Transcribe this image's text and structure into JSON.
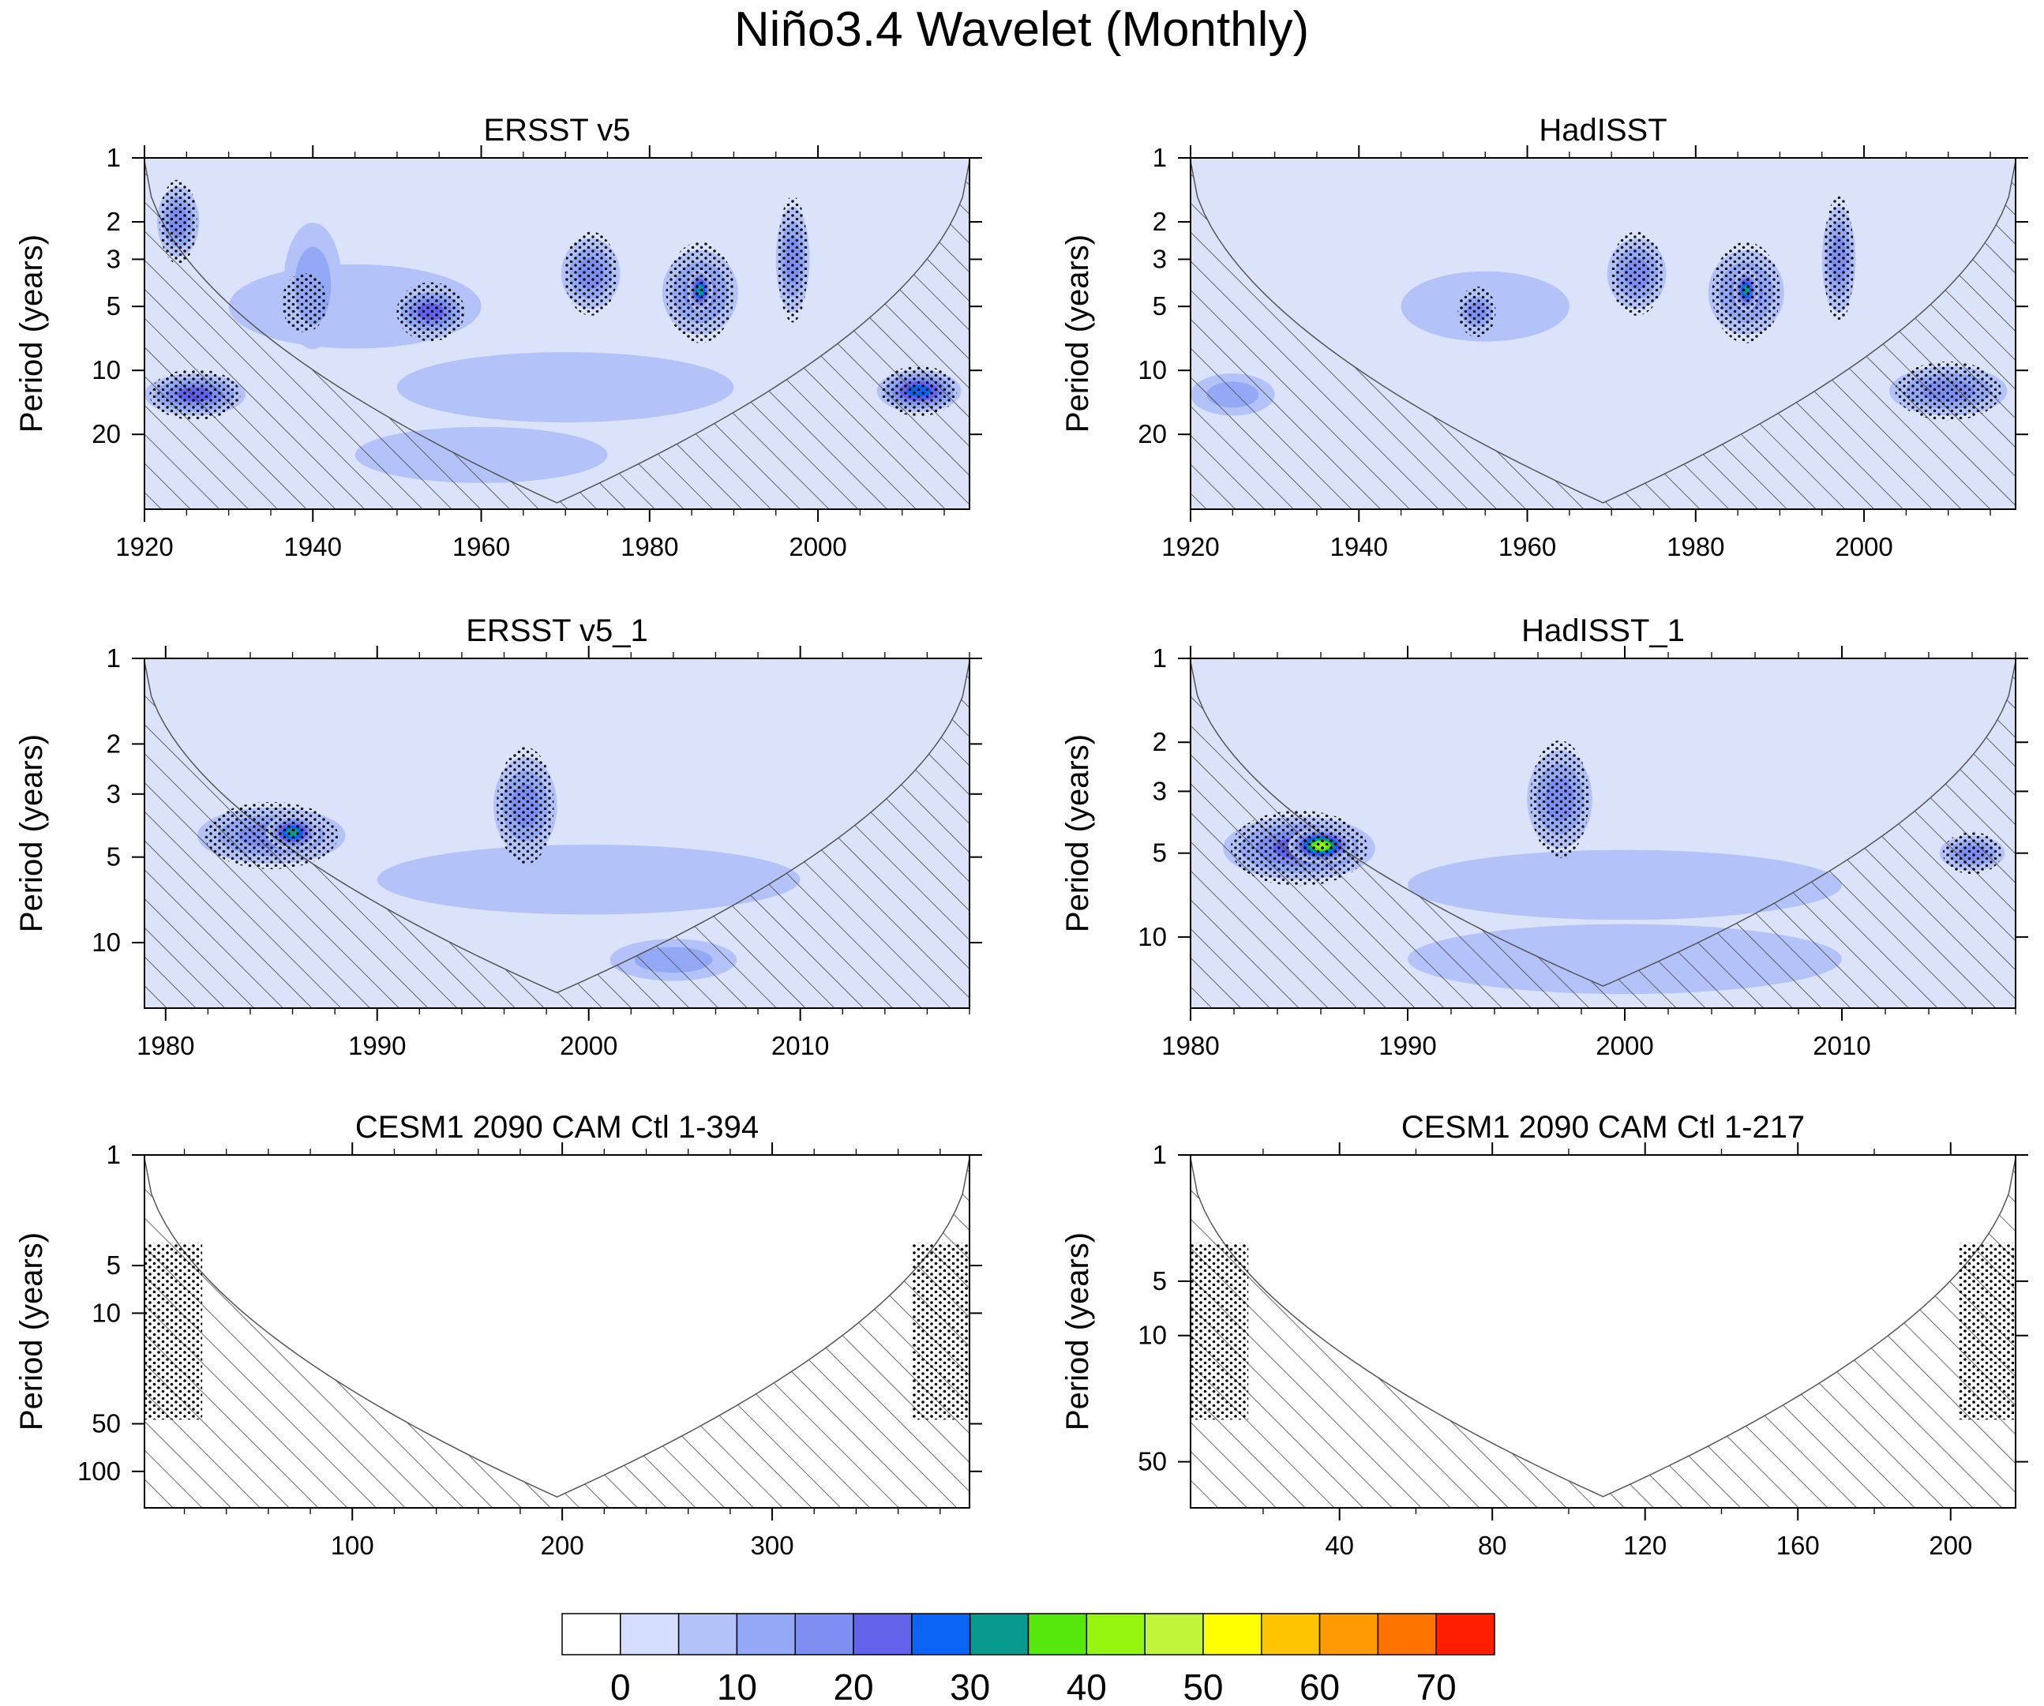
{
  "title": "Niño3.4 Wavelet (Monthly)",
  "colors": {
    "background": "#dbe3fb",
    "levels": [
      "#ffffff",
      "#d6deff",
      "#b4c2fa",
      "#93a9f5",
      "#7d8ff0",
      "#6262ea",
      "#0a64f5",
      "#089a8e",
      "#56e80d",
      "#96f50f",
      "#c0f53a",
      "#ffff00",
      "#ffc400",
      "#ff9a00",
      "#ff7400",
      "#ff1e00"
    ],
    "hatch": "#444444",
    "stipple": "#000000"
  },
  "chart_data": [
    {
      "type": "heatmap",
      "title": "ERSST v5",
      "ylabel": "Period (years)",
      "xlim": [
        1920,
        2018
      ],
      "xticks": [
        1920,
        1940,
        1960,
        1980,
        2000
      ],
      "yticks": [
        1,
        2,
        3,
        5,
        10,
        20
      ],
      "ylim": [
        1,
        45
      ],
      "coi_min": 1920,
      "coi_max": 2018,
      "coi_peak": 42,
      "features": [
        {
          "x": 1945,
          "p": 5,
          "w": 30,
          "h": 0.12,
          "level": 2
        },
        {
          "x": 1954,
          "p": 5.3,
          "w": 9,
          "h": 0.07,
          "level": 5
        },
        {
          "x": 1939,
          "p": 4.8,
          "w": 6,
          "h": 0.07,
          "level": 5
        },
        {
          "x": 1940,
          "p": 4.0,
          "w": 7,
          "h": 0.18,
          "level": 3
        },
        {
          "x": 1924,
          "p": 2.0,
          "w": 5,
          "h": 0.1,
          "level": 4
        },
        {
          "x": 1973,
          "p": 3.5,
          "w": 7,
          "h": 0.1,
          "level": 4
        },
        {
          "x": 1986,
          "p": 4.3,
          "w": 9,
          "h": 0.12,
          "level": 4
        },
        {
          "x": 1986,
          "p": 4.2,
          "w": 3,
          "h": 0.06,
          "level": 7
        },
        {
          "x": 1997,
          "p": 3.0,
          "w": 4,
          "h": 0.15,
          "level": 4
        },
        {
          "x": 1926,
          "p": 13,
          "w": 12,
          "h": 0.06,
          "level": 5
        },
        {
          "x": 2012,
          "p": 12.5,
          "w": 10,
          "h": 0.06,
          "level": 6
        },
        {
          "x": 1970,
          "p": 12,
          "w": 40,
          "h": 0.1,
          "level": 2
        },
        {
          "x": 1960,
          "p": 25,
          "w": 30,
          "h": 0.08,
          "level": 2
        }
      ]
    },
    {
      "type": "heatmap",
      "title": "HadISST",
      "ylabel": "Period (years)",
      "xlim": [
        1920,
        2018
      ],
      "xticks": [
        1920,
        1940,
        1960,
        1980,
        2000
      ],
      "yticks": [
        1,
        2,
        3,
        5,
        10,
        20
      ],
      "ylim": [
        1,
        45
      ],
      "coi_min": 1920,
      "coi_max": 2018,
      "coi_peak": 42,
      "features": [
        {
          "x": 1955,
          "p": 5,
          "w": 20,
          "h": 0.1,
          "level": 2
        },
        {
          "x": 1954,
          "p": 5.3,
          "w": 5,
          "h": 0.06,
          "level": 4
        },
        {
          "x": 1973,
          "p": 3.5,
          "w": 7,
          "h": 0.1,
          "level": 4
        },
        {
          "x": 1986,
          "p": 4.3,
          "w": 9,
          "h": 0.12,
          "level": 4
        },
        {
          "x": 1986,
          "p": 4.2,
          "w": 3,
          "h": 0.06,
          "level": 7
        },
        {
          "x": 1997,
          "p": 3.0,
          "w": 4,
          "h": 0.15,
          "level": 4
        },
        {
          "x": 2010,
          "p": 12.5,
          "w": 14,
          "h": 0.07,
          "level": 4
        },
        {
          "x": 1925,
          "p": 13,
          "w": 10,
          "h": 0.06,
          "level": 3
        }
      ]
    },
    {
      "type": "heatmap",
      "title": "ERSST v5_1",
      "ylabel": "Period (years)",
      "xlim": [
        1979,
        2018
      ],
      "xticks": [
        1980,
        1990,
        2000,
        2010
      ],
      "yticks": [
        1,
        2,
        3,
        5,
        10
      ],
      "ylim": [
        1,
        17
      ],
      "coi_min": 1979,
      "coi_max": 2018,
      "coi_peak": 15,
      "features": [
        {
          "x": 1985,
          "p": 4.2,
          "w": 7,
          "h": 0.08,
          "level": 4
        },
        {
          "x": 1986,
          "p": 4.1,
          "w": 2.5,
          "h": 0.05,
          "level": 7
        },
        {
          "x": 1997,
          "p": 3.3,
          "w": 3,
          "h": 0.14,
          "level": 4
        },
        {
          "x": 2000,
          "p": 6.0,
          "w": 20,
          "h": 0.1,
          "level": 2
        },
        {
          "x": 2004,
          "p": 11.5,
          "w": 6,
          "h": 0.06,
          "level": 3
        }
      ]
    },
    {
      "type": "heatmap",
      "title": "HadISST_1",
      "ylabel": "Period (years)",
      "xlim": [
        1980,
        2018
      ],
      "xticks": [
        1980,
        1990,
        2000,
        2010
      ],
      "yticks": [
        1,
        2,
        3,
        5,
        10
      ],
      "ylim": [
        1,
        18
      ],
      "coi_min": 1980,
      "coi_max": 2018,
      "coi_peak": 15,
      "features": [
        {
          "x": 1985,
          "p": 4.8,
          "w": 7,
          "h": 0.09,
          "level": 5
        },
        {
          "x": 1986,
          "p": 4.7,
          "w": 3,
          "h": 0.05,
          "level": 9
        },
        {
          "x": 1997,
          "p": 3.2,
          "w": 3,
          "h": 0.14,
          "level": 4
        },
        {
          "x": 2016,
          "p": 5.0,
          "w": 3,
          "h": 0.05,
          "level": 4
        },
        {
          "x": 2000,
          "p": 6.5,
          "w": 20,
          "h": 0.1,
          "level": 2
        },
        {
          "x": 2000,
          "p": 12,
          "w": 20,
          "h": 0.1,
          "level": 2
        }
      ]
    },
    {
      "type": "heatmap",
      "title": "CESM1 2090 CAM Ctl 1-394",
      "ylabel": "Period (years)",
      "xlim": [
        1,
        394
      ],
      "xticks": [
        100,
        200,
        300
      ],
      "yticks": [
        1,
        5,
        10,
        50,
        100
      ],
      "ylim": [
        1,
        170
      ],
      "coi_min": 1,
      "coi_max": 394,
      "coi_peak": 145,
      "features": []
    },
    {
      "type": "heatmap",
      "title": "CESM1 2090 CAM Ctl 1-217",
      "ylabel": "Period (years)",
      "xlim": [
        1,
        217
      ],
      "xticks": [
        40,
        80,
        120,
        160,
        200
      ],
      "yticks": [
        1,
        5,
        10,
        50
      ],
      "ylim": [
        1,
        90
      ],
      "coi_min": 1,
      "coi_max": 217,
      "coi_peak": 78,
      "features": []
    }
  ],
  "colorbar": {
    "labels": [
      "0",
      "10",
      "20",
      "30",
      "40",
      "50",
      "60",
      "70"
    ]
  }
}
